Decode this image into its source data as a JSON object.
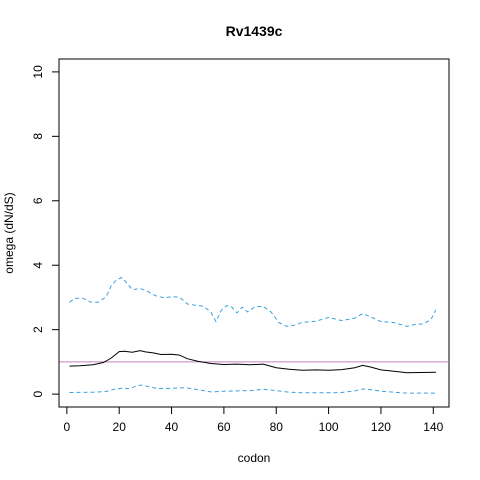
{
  "chart_data": {
    "type": "line",
    "title": "Rv1439c",
    "xlabel": "codon",
    "ylabel": "omega (dN/dS)",
    "xlim": [
      -3,
      146
    ],
    "ylim": [
      -0.4,
      10.4
    ],
    "xticks": [
      0,
      20,
      40,
      60,
      80,
      100,
      120,
      140
    ],
    "yticks": [
      0,
      2,
      4,
      6,
      8,
      10
    ],
    "reference_line": {
      "y": 1.0,
      "color": "#c080c0"
    },
    "series": [
      {
        "style": "solid",
        "color": "#000000",
        "x": [
          1,
          5,
          10,
          14,
          17,
          20,
          22,
          25,
          28,
          30,
          33,
          36,
          40,
          43,
          46,
          50,
          55,
          60,
          65,
          70,
          75,
          80,
          85,
          90,
          95,
          100,
          105,
          110,
          113,
          116,
          120,
          125,
          130,
          135,
          141
        ],
        "values": [
          0.87,
          0.88,
          0.91,
          0.98,
          1.12,
          1.32,
          1.33,
          1.3,
          1.35,
          1.31,
          1.28,
          1.23,
          1.24,
          1.21,
          1.1,
          1.02,
          0.95,
          0.92,
          0.93,
          0.91,
          0.93,
          0.82,
          0.77,
          0.74,
          0.75,
          0.74,
          0.76,
          0.82,
          0.89,
          0.84,
          0.75,
          0.71,
          0.66,
          0.67,
          0.68
        ]
      },
      {
        "style": "dashed",
        "color": "#3aa0e0",
        "x": [
          1,
          3,
          6,
          9,
          12,
          15,
          17,
          19,
          21,
          23,
          25,
          28,
          31,
          34,
          37,
          40,
          43,
          46,
          49,
          52,
          55,
          57,
          59,
          61,
          63,
          65,
          67,
          69,
          72,
          75,
          78,
          81,
          84,
          87,
          90,
          95,
          100,
          105,
          110,
          113,
          116,
          120,
          125,
          130,
          133,
          136,
          139,
          141
        ],
        "values": [
          2.85,
          2.97,
          2.98,
          2.86,
          2.85,
          3.02,
          3.36,
          3.55,
          3.62,
          3.44,
          3.24,
          3.28,
          3.18,
          3.05,
          2.99,
          3.02,
          3.01,
          2.8,
          2.76,
          2.73,
          2.55,
          2.25,
          2.6,
          2.75,
          2.7,
          2.52,
          2.7,
          2.55,
          2.72,
          2.72,
          2.55,
          2.22,
          2.1,
          2.14,
          2.23,
          2.26,
          2.38,
          2.28,
          2.36,
          2.5,
          2.4,
          2.25,
          2.22,
          2.1,
          2.16,
          2.18,
          2.3,
          2.62
        ]
      },
      {
        "style": "dashed",
        "color": "#3aa0e0",
        "x": [
          1,
          10,
          15,
          18,
          21,
          24,
          27,
          29,
          32,
          35,
          40,
          45,
          50,
          55,
          60,
          65,
          70,
          75,
          80,
          85,
          90,
          95,
          100,
          105,
          110,
          113,
          116,
          120,
          125,
          130,
          135,
          141
        ],
        "values": [
          0.05,
          0.06,
          0.08,
          0.15,
          0.18,
          0.17,
          0.27,
          0.28,
          0.21,
          0.17,
          0.18,
          0.2,
          0.14,
          0.07,
          0.09,
          0.1,
          0.11,
          0.15,
          0.11,
          0.06,
          0.04,
          0.04,
          0.04,
          0.05,
          0.1,
          0.16,
          0.14,
          0.09,
          0.06,
          0.03,
          0.03,
          0.03
        ]
      }
    ]
  }
}
